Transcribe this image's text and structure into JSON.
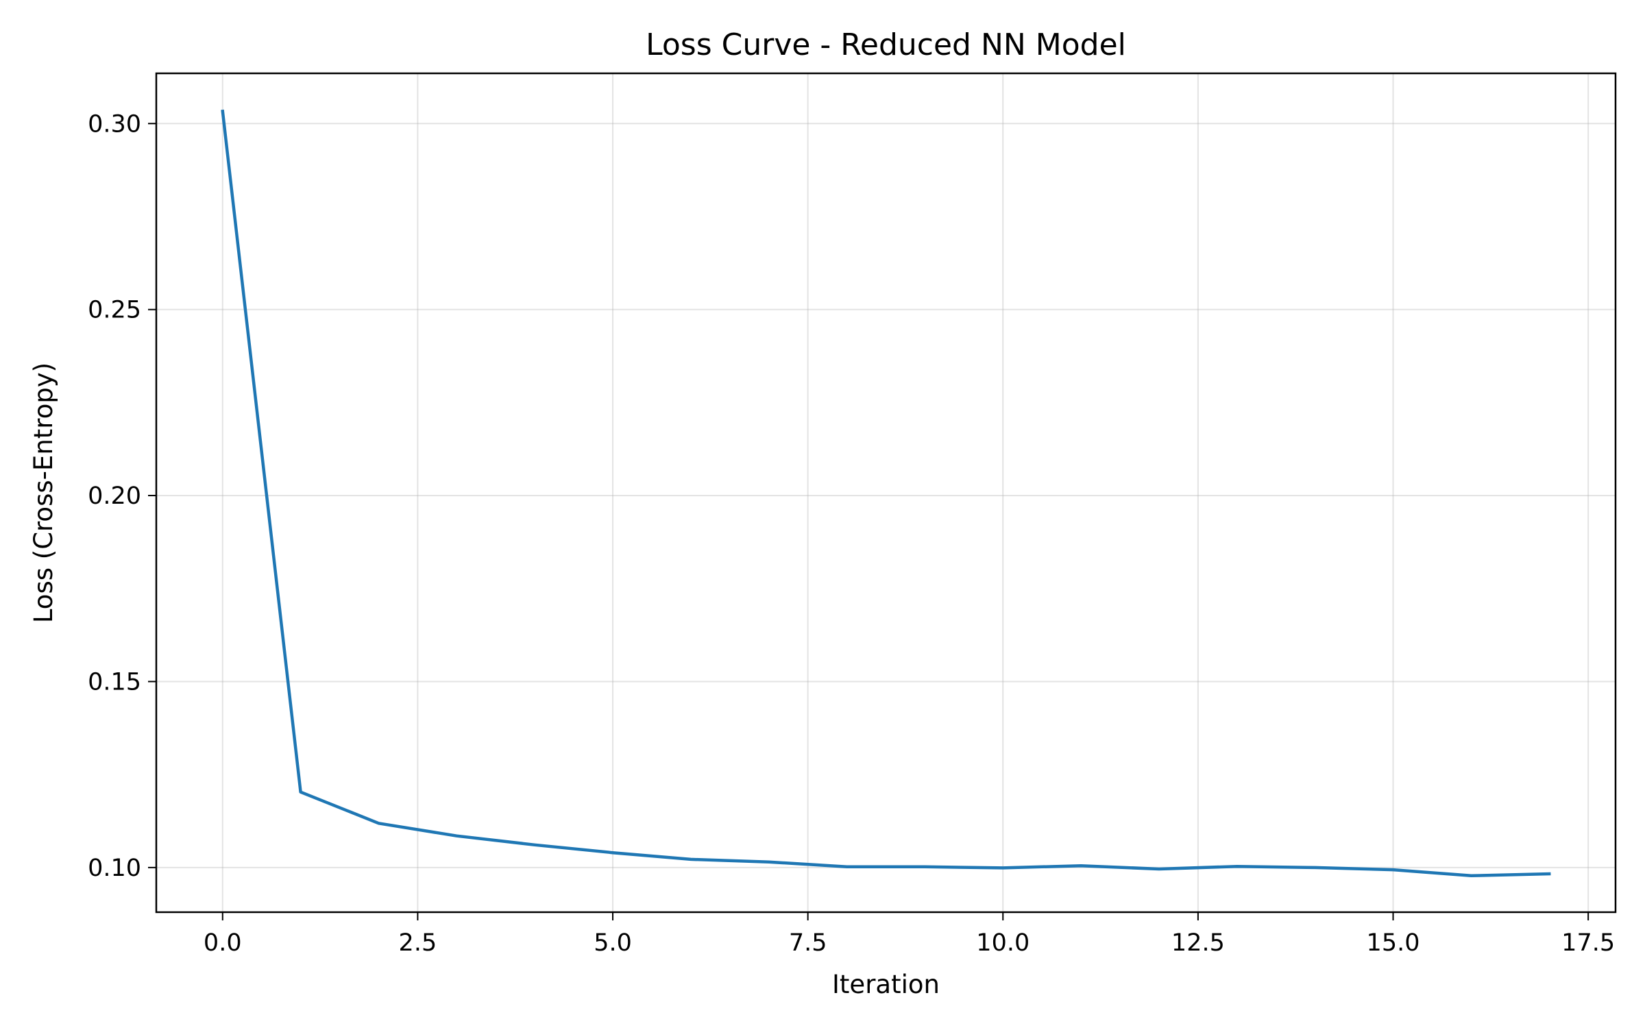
{
  "chart_data": {
    "type": "line",
    "title": "Loss Curve - Reduced NN Model",
    "xlabel": "Iteration",
    "ylabel": "Loss (Cross-Entropy)",
    "xlim": [
      -0.85,
      17.85
    ],
    "ylim": [
      0.088,
      0.3135
    ],
    "xticks": [
      0.0,
      2.5,
      5.0,
      7.5,
      10.0,
      12.5,
      15.0,
      17.5
    ],
    "xtick_labels": [
      "0.0",
      "2.5",
      "5.0",
      "7.5",
      "10.0",
      "12.5",
      "15.0",
      "17.5"
    ],
    "yticks": [
      0.1,
      0.15,
      0.2,
      0.25,
      0.3
    ],
    "ytick_labels": [
      "0.10",
      "0.15",
      "0.20",
      "0.25",
      "0.30"
    ],
    "grid": true,
    "series": [
      {
        "color": "#1f77b4",
        "x": [
          0,
          1,
          2,
          3,
          4,
          5,
          6,
          7,
          8,
          9,
          10,
          11,
          12,
          13,
          14,
          15,
          16,
          17
        ],
        "y": [
          0.3033,
          0.1203,
          0.1119,
          0.1085,
          0.1061,
          0.104,
          0.1022,
          0.1015,
          0.1002,
          0.1002,
          0.0999,
          0.1005,
          0.0996,
          0.1003,
          0.1,
          0.0994,
          0.0978,
          0.0983
        ]
      }
    ]
  }
}
